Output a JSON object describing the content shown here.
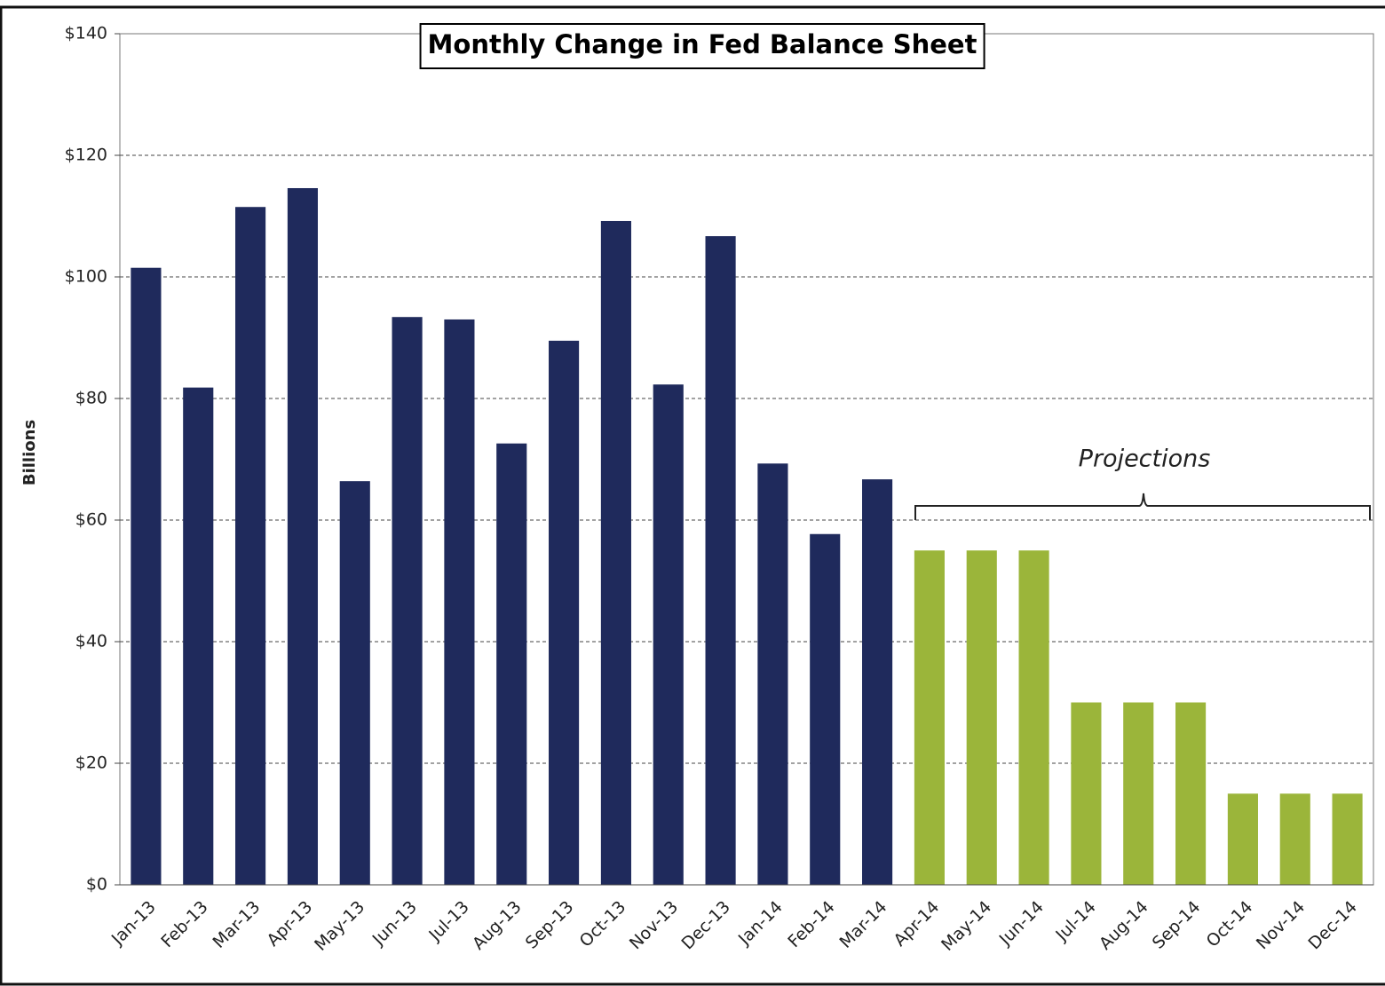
{
  "chart_data": {
    "type": "bar",
    "title": "Monthly Change in Fed Balance Sheet",
    "y_label": "Billions",
    "annotation": "Projections",
    "categories": [
      "Jan-13",
      "Feb-13",
      "Mar-13",
      "Apr-13",
      "May-13",
      "Jun-13",
      "Jul-13",
      "Aug-13",
      "Sep-13",
      "Oct-13",
      "Nov-13",
      "Dec-13",
      "Jan-14",
      "Feb-14",
      "Mar-14",
      "Apr-14",
      "May-14",
      "Jun-14",
      "Jul-14",
      "Aug-14",
      "Sep-14",
      "Oct-14",
      "Nov-14",
      "Dec-14"
    ],
    "values": [
      101.5,
      81.8,
      111.5,
      114.6,
      66.4,
      93.4,
      93,
      72.6,
      89.5,
      109.2,
      82.3,
      106.7,
      69.3,
      57.7,
      66.7,
      55,
      55,
      55,
      30,
      30,
      30,
      15,
      15,
      15
    ],
    "colors": [
      "#1f2a5c",
      "#1f2a5c",
      "#1f2a5c",
      "#1f2a5c",
      "#1f2a5c",
      "#1f2a5c",
      "#1f2a5c",
      "#1f2a5c",
      "#1f2a5c",
      "#1f2a5c",
      "#1f2a5c",
      "#1f2a5c",
      "#1f2a5c",
      "#1f2a5c",
      "#1f2a5c",
      "#9bb53a",
      "#9bb53a",
      "#9bb53a",
      "#9bb53a",
      "#9bb53a",
      "#9bb53a",
      "#9bb53a",
      "#9bb53a",
      "#9bb53a"
    ],
    "ylim": [
      0,
      140
    ],
    "yticks": [
      {
        "value": 0,
        "label": "$0"
      },
      {
        "value": 20,
        "label": "$20"
      },
      {
        "value": 40,
        "label": "$40"
      },
      {
        "value": 60,
        "label": "$60"
      },
      {
        "value": 80,
        "label": "$80"
      },
      {
        "value": 100,
        "label": "$100"
      },
      {
        "value": 120,
        "label": "$120"
      },
      {
        "value": 140,
        "label": "$140"
      }
    ],
    "grid": true
  }
}
